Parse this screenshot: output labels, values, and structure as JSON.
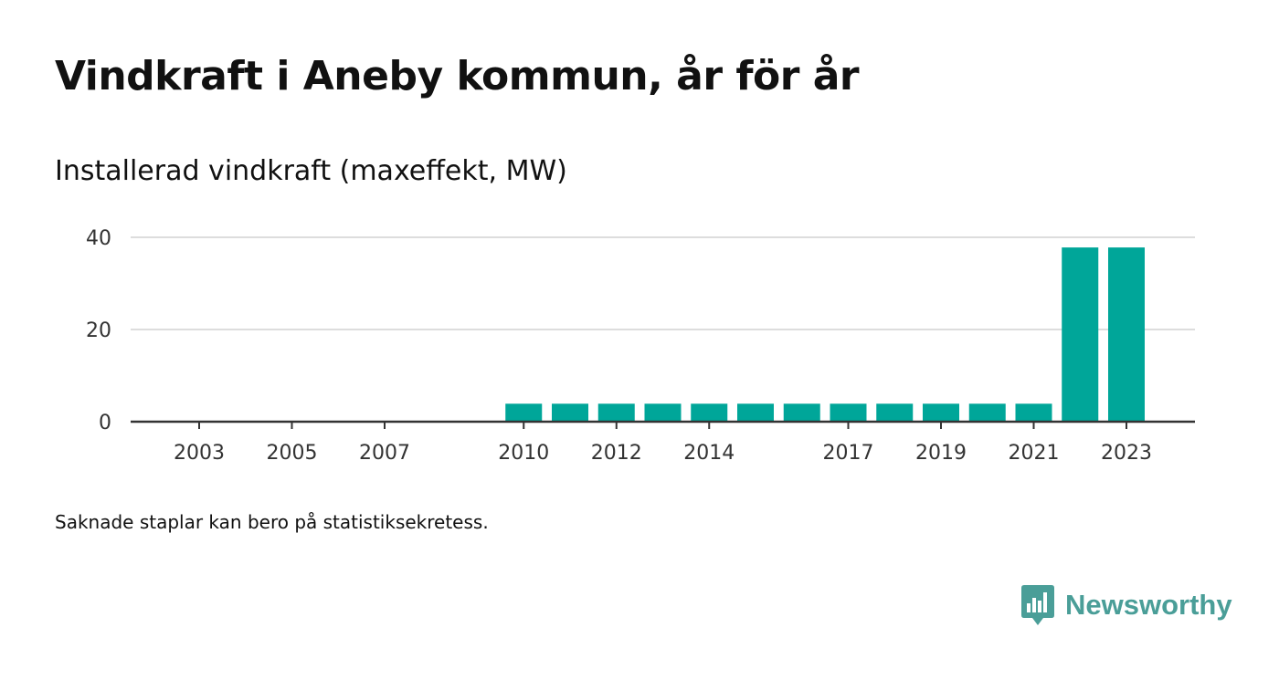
{
  "title": "Vindkraft i Aneby kommun, år för år",
  "subtitle": "Installerad vindkraft (maxeffekt, MW)",
  "footnote": "Saknade staplar kan bero på statistiksekretess.",
  "brand": {
    "name": "Newsworthy",
    "color": "#4a9e98",
    "icon": "newsworthy-logo-icon"
  },
  "colors": {
    "bar": "#00a699",
    "grid": "#dddddd",
    "axis": "#333333"
  },
  "chart_data": {
    "type": "bar",
    "title": "Vindkraft i Aneby kommun, år för år",
    "subtitle": "Installerad vindkraft (maxeffekt, MW)",
    "xlabel": "",
    "ylabel": "",
    "x_range": [
      2002,
      2024
    ],
    "ylim": [
      0,
      42
    ],
    "yticks": [
      0,
      20,
      40
    ],
    "xticks": [
      2003,
      2005,
      2007,
      2010,
      2012,
      2014,
      2017,
      2019,
      2021,
      2023
    ],
    "grid": true,
    "legend": "none",
    "categories": [
      2010,
      2011,
      2012,
      2013,
      2014,
      2015,
      2016,
      2017,
      2018,
      2019,
      2020,
      2021,
      2022,
      2023
    ],
    "values": [
      3.9,
      3.9,
      3.9,
      3.9,
      3.9,
      3.9,
      3.9,
      3.9,
      3.9,
      3.9,
      3.9,
      3.9,
      37.8,
      37.8
    ]
  }
}
